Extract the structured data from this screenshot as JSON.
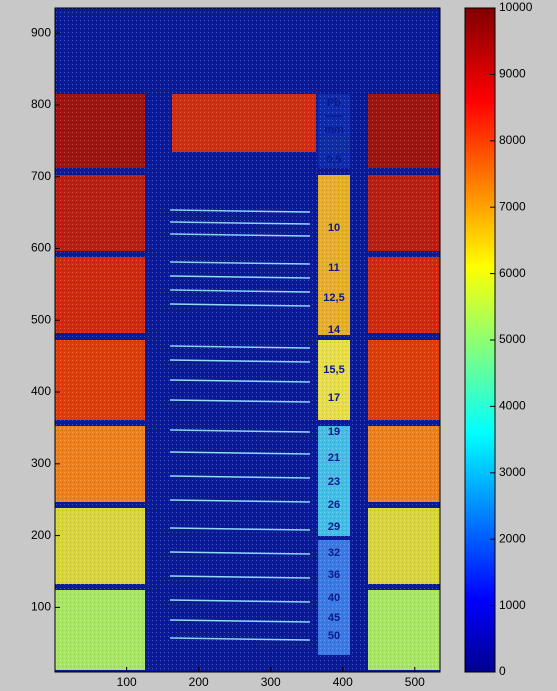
{
  "chart_data": {
    "type": "heatmap",
    "xlim": [
      0.5,
      535
    ],
    "ylim": [
      10,
      935
    ],
    "xticks": [
      100,
      200,
      300,
      400,
      500
    ],
    "yticks": [
      100,
      200,
      300,
      400,
      500,
      600,
      700,
      800,
      900
    ],
    "colorbar": {
      "lim": [
        0,
        10000
      ],
      "ticks": [
        0,
        1000,
        2000,
        3000,
        4000,
        5000,
        6000,
        7000,
        8000,
        9000,
        10000
      ]
    },
    "annotations": [
      "Pb",
      "mm",
      "0,5",
      "10",
      "11",
      "12,5",
      "14",
      "15,5",
      "17",
      "19",
      "21",
      "23",
      "26",
      "29",
      "32",
      "36",
      "40",
      "45",
      "50"
    ]
  }
}
